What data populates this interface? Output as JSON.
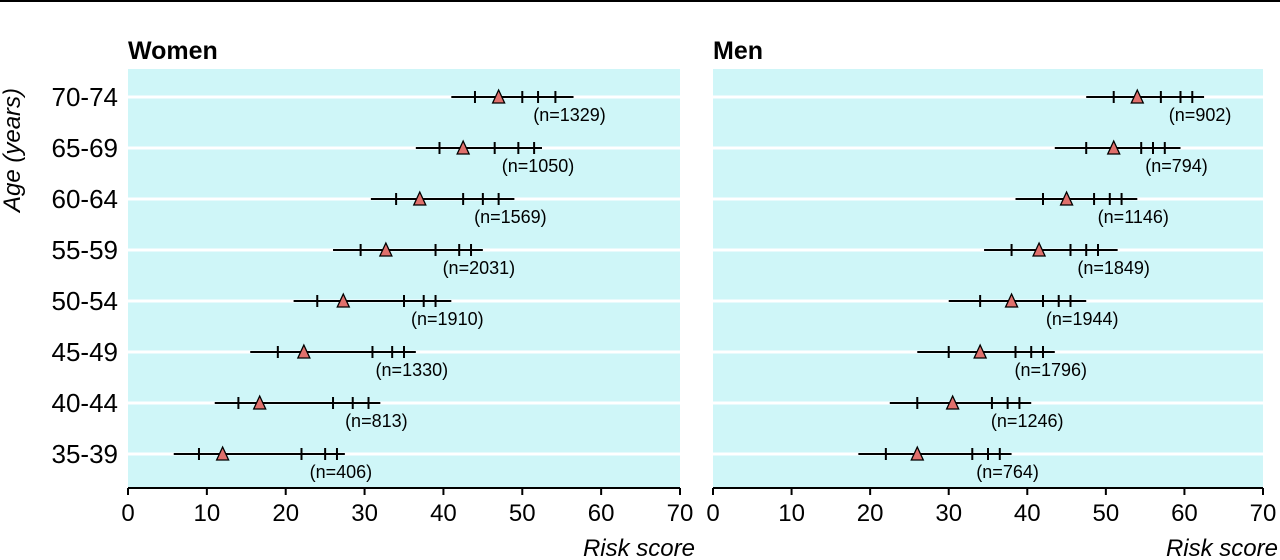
{
  "chart_data": [
    {
      "type": "scatter",
      "title": "Women",
      "xlabel": "Risk score",
      "ylabel": "Age (years)",
      "xlim": [
        0,
        70
      ],
      "x_ticks": [
        0,
        10,
        20,
        30,
        40,
        50,
        60,
        70
      ],
      "categories": [
        "70-74",
        "65-69",
        "60-64",
        "55-59",
        "50-54",
        "45-49",
        "40-44",
        "35-39"
      ],
      "rows": [
        {
          "age": "70-74",
          "min": 41.0,
          "ticks": [
            44.0,
            50.0,
            52.0,
            54.2
          ],
          "median": 47.0,
          "max": 56.5,
          "n_label": "(n=1329)"
        },
        {
          "age": "65-69",
          "min": 36.5,
          "ticks": [
            39.5,
            46.5,
            49.5,
            51.5
          ],
          "median": 42.5,
          "max": 52.5,
          "n_label": "(n=1050)"
        },
        {
          "age": "60-64",
          "min": 30.8,
          "ticks": [
            34.0,
            42.5,
            45.0,
            47.0
          ],
          "median": 37.0,
          "max": 49.0,
          "n_label": "(n=1569)"
        },
        {
          "age": "55-59",
          "min": 26.0,
          "ticks": [
            29.5,
            39.0,
            42.0,
            43.5
          ],
          "median": 32.7,
          "max": 45.0,
          "n_label": "(n=2031)"
        },
        {
          "age": "50-54",
          "min": 21.0,
          "ticks": [
            24.0,
            35.0,
            37.5,
            39.0
          ],
          "median": 27.3,
          "max": 41.0,
          "n_label": "(n=1910)"
        },
        {
          "age": "45-49",
          "min": 15.5,
          "ticks": [
            19.0,
            31.0,
            33.5,
            35.0
          ],
          "median": 22.3,
          "max": 36.5,
          "n_label": "(n=1330)"
        },
        {
          "age": "40-44",
          "min": 11.0,
          "ticks": [
            14.0,
            26.0,
            28.5,
            30.5
          ],
          "median": 16.7,
          "max": 32.0,
          "n_label": "(n=813)"
        },
        {
          "age": "35-39",
          "min": 5.8,
          "ticks": [
            9.0,
            22.0,
            25.0,
            26.5
          ],
          "median": 12.0,
          "max": 27.5,
          "n_label": "(n=406)"
        }
      ]
    },
    {
      "type": "scatter",
      "title": "Men",
      "xlabel": "Risk score",
      "xlim": [
        0,
        70
      ],
      "x_ticks": [
        0,
        10,
        20,
        30,
        40,
        50,
        60,
        70
      ],
      "categories": [
        "70-74",
        "65-69",
        "60-64",
        "55-59",
        "50-54",
        "45-49",
        "40-44",
        "35-39"
      ],
      "rows": [
        {
          "age": "70-74",
          "min": 47.5,
          "ticks": [
            51.0,
            57.0,
            59.5,
            61.0
          ],
          "median": 54.0,
          "max": 62.5,
          "n_label": "(n=902)"
        },
        {
          "age": "65-69",
          "min": 43.5,
          "ticks": [
            47.5,
            54.5,
            56.0,
            57.5
          ],
          "median": 51.0,
          "max": 59.5,
          "n_label": "(n=794)"
        },
        {
          "age": "60-64",
          "min": 38.5,
          "ticks": [
            42.0,
            48.5,
            50.5,
            52.0
          ],
          "median": 45.0,
          "max": 54.0,
          "n_label": "(n=1146)"
        },
        {
          "age": "55-59",
          "min": 34.5,
          "ticks": [
            38.0,
            45.5,
            47.5,
            49.0
          ],
          "median": 41.5,
          "max": 51.5,
          "n_label": "(n=1849)"
        },
        {
          "age": "50-54",
          "min": 30.0,
          "ticks": [
            34.0,
            42.0,
            44.0,
            45.5
          ],
          "median": 38.0,
          "max": 47.5,
          "n_label": "(n=1944)"
        },
        {
          "age": "45-49",
          "min": 26.0,
          "ticks": [
            30.0,
            38.5,
            40.5,
            42.0
          ],
          "median": 34.0,
          "max": 43.5,
          "n_label": "(n=1796)"
        },
        {
          "age": "40-44",
          "min": 22.5,
          "ticks": [
            26.0,
            35.5,
            37.5,
            39.0
          ],
          "median": 30.5,
          "max": 40.5,
          "n_label": "(n=1246)"
        },
        {
          "age": "35-39",
          "min": 18.5,
          "ticks": [
            22.0,
            33.0,
            35.0,
            36.5
          ],
          "median": 26.0,
          "max": 38.0,
          "n_label": "(n=764)"
        }
      ]
    }
  ],
  "style": {
    "panel_bg": "#cff6f8",
    "gridline": "#ffffff",
    "marker_fill": "#e0706c",
    "line": "#000000"
  }
}
